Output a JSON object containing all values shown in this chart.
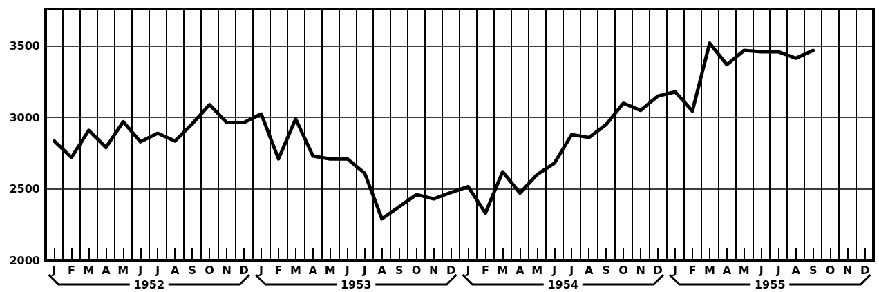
{
  "chart_data": {
    "type": "line",
    "categories": [
      "J",
      "F",
      "M",
      "A",
      "M",
      "J",
      "J",
      "A",
      "S",
      "O",
      "N",
      "D",
      "J",
      "F",
      "M",
      "A",
      "M",
      "J",
      "J",
      "A",
      "S",
      "O",
      "N",
      "D",
      "J",
      "F",
      "M",
      "A",
      "M",
      "J",
      "J",
      "A",
      "S",
      "O",
      "N",
      "D",
      "J",
      "F",
      "M",
      "A",
      "M",
      "J",
      "J",
      "A",
      "S",
      "O",
      "N",
      "D"
    ],
    "series": [
      {
        "color": "#000000",
        "values": [
          2835,
          2720,
          2910,
          2790,
          2970,
          2830,
          2890,
          2835,
          2955,
          3090,
          2965,
          2965,
          3025,
          2710,
          2990,
          2730,
          2710,
          2710,
          2610,
          2290,
          2375,
          2460,
          2430,
          2475,
          2515,
          2330,
          2620,
          2470,
          2600,
          2680,
          2880,
          2860,
          2950,
          3100,
          3050,
          3150,
          3180,
          3045,
          3520,
          3370,
          3470,
          3460,
          3460,
          3415,
          3470,
          null,
          null,
          null
        ]
      }
    ],
    "ylim": [
      2000,
      3760
    ],
    "yticks": [
      2000,
      2500,
      3000,
      3500
    ],
    "grid": true,
    "marker": "none",
    "line_style": "solid",
    "annotations": [
      "1952",
      "1953",
      "1954",
      "1955"
    ]
  }
}
